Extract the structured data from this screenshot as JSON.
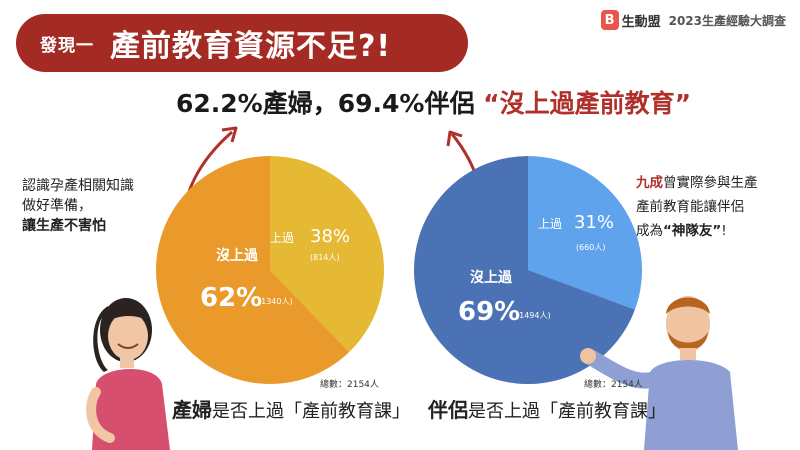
{
  "header": {
    "kicker": "發現一",
    "title": "產前教育資源不足?!"
  },
  "brand": {
    "name": "生動盟",
    "tag": "2023生產經驗大調查"
  },
  "headline": {
    "main": "62.2%產婦，69.4%伴侶 ",
    "quote": "“沒上過產前教育”"
  },
  "notes": {
    "left": {
      "line1": "認識孕產相關知識",
      "line2": "做好準備，",
      "line3": "讓生產不害怕"
    },
    "right": {
      "emph": "九成",
      "line1_rest": "曾實際參與生產",
      "line2": "產前教育能讓伴侶",
      "line3_pre": "成為",
      "line3_strong": "“神隊友”",
      "line3_post": "!"
    }
  },
  "chart_data": [
    {
      "type": "pie",
      "title": "產婦是否上過「產前教育課」",
      "total": "總數：2154人",
      "slices": [
        {
          "label": "上過",
          "percent": "38%",
          "count": "(814人)",
          "value": 814,
          "color": "#e6b935"
        },
        {
          "label": "沒上過",
          "percent": "62%",
          "count": "(1340人)",
          "value": 1340,
          "color": "#e99a2a"
        }
      ]
    },
    {
      "type": "pie",
      "title": "伴侶是否上過「產前教育課」",
      "total": "總數：2154人",
      "slices": [
        {
          "label": "上過",
          "percent": "31%",
          "count": "(660人)",
          "value": 660,
          "color": "#5ea3ec"
        },
        {
          "label": "沒上過",
          "percent": "69%",
          "count": "(1494人)",
          "value": 1494,
          "color": "#4a72b5"
        }
      ]
    }
  ],
  "captions": {
    "left_strong": "產婦",
    "left_rest": "是否上過「產前教育課」",
    "right_strong": "伴侶",
    "right_rest": "是否上過「產前教育課」"
  }
}
